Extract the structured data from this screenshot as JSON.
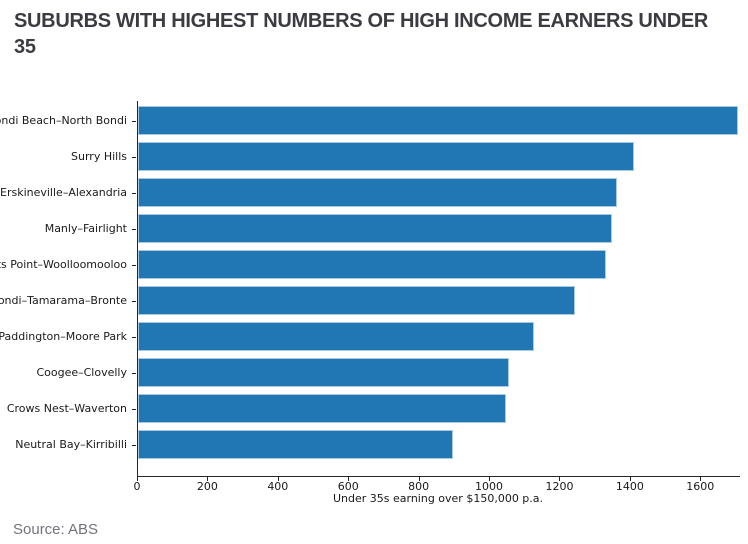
{
  "title": {
    "text": "SUBURBS WITH HIGHEST NUMBERS OF HIGH INCOME EARNERS UNDER 35",
    "line1": "SUBURBS WITH HIGHEST NUMBERS OF HIGH INCOME EARNERS UNDER",
    "line2": "35"
  },
  "source": "Source: ABS",
  "chart_data": {
    "type": "bar",
    "orientation": "horizontal",
    "categories": [
      "Bondi Beach–North Bondi",
      "Surry Hills",
      "Erskineville–Alexandria",
      "Manly–Fairlight",
      "Potts Point–Woolloomooloo",
      "Bondi–Tamarama–Bronte",
      "Paddington–Moore Park",
      "Coogee–Clovelly",
      "Crows Nest–Waverton",
      "Neutral Bay–Kirribilli"
    ],
    "values": [
      1705,
      1410,
      1360,
      1345,
      1330,
      1240,
      1125,
      1055,
      1045,
      895
    ],
    "xlabel": "Under 35s earning over $150,000 p.a.",
    "xticks": [
      0,
      200,
      400,
      600,
      800,
      1000,
      1200,
      1400,
      1600
    ],
    "xlim": [
      0,
      1710
    ],
    "grid": false,
    "legend": null,
    "colors": {
      "bar": "#2177b4",
      "bar_edge": "#a9cbe2",
      "axis": "#262626",
      "tick_label": "#1a1a1a",
      "title": "#3b3b42",
      "source": "#73737d"
    }
  }
}
